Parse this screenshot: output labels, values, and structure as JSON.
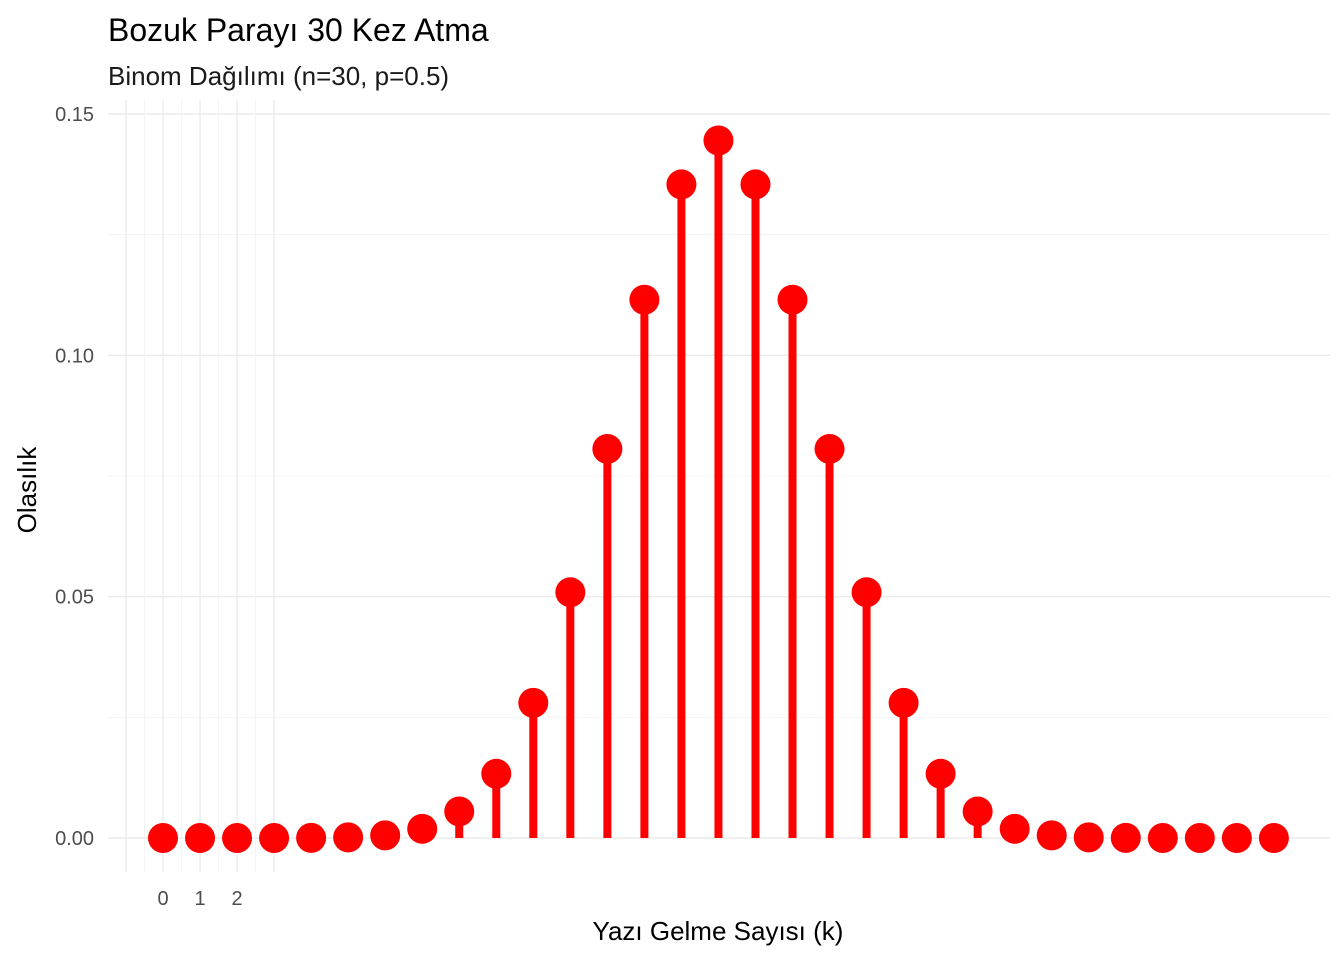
{
  "chart_data": {
    "type": "lollipop",
    "title": "Bozuk Parayı 30 Kez Atma",
    "subtitle": "Binom Dağılımı (n=30, p=0.5)",
    "xlabel": "Yazı Gelme Sayısı (k)",
    "ylabel": "Olasılık",
    "x": [
      0,
      1,
      2,
      3,
      4,
      5,
      6,
      7,
      8,
      9,
      10,
      11,
      12,
      13,
      14,
      15,
      16,
      17,
      18,
      19,
      20,
      21,
      22,
      23,
      24,
      25,
      26,
      27,
      28,
      29,
      30
    ],
    "values": [
      9e-10,
      2.8e-08,
      4.1e-07,
      3.8e-06,
      2.5e-05,
      0.00013,
      0.00055,
      0.0019,
      0.0055,
      0.0133,
      0.028,
      0.0509,
      0.0806,
      0.1115,
      0.1354,
      0.1445,
      0.1354,
      0.1115,
      0.0806,
      0.0509,
      0.028,
      0.0133,
      0.0055,
      0.0019,
      0.00055,
      0.00013,
      2.5e-05,
      3.8e-06,
      4.1e-07,
      2.8e-08,
      9e-10
    ],
    "x_tick_labels": [
      "0",
      "1",
      "2"
    ],
    "x_tick_values": [
      0,
      1,
      2
    ],
    "y_ticks": [
      "0.00",
      "0.05",
      "0.10",
      "0.15"
    ],
    "y_tick_values": [
      0,
      0.05,
      0.1,
      0.15
    ],
    "ylim": [
      -0.0065,
      0.155
    ],
    "grid": true,
    "color": "#ff0000"
  }
}
